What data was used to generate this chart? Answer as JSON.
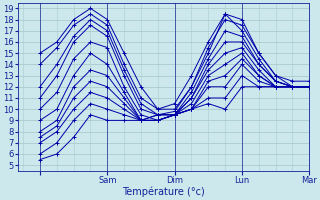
{
  "xlabel": "Température (°c)",
  "xlim": [
    -8,
    96
  ],
  "ylim": [
    4.5,
    19.5
  ],
  "yticks": [
    5,
    6,
    7,
    8,
    9,
    10,
    11,
    12,
    13,
    14,
    15,
    16,
    17,
    18,
    19
  ],
  "xtick_positions": [
    0,
    24,
    48,
    72,
    96
  ],
  "xtick_labels": [
    "",
    "Sam",
    "Dim",
    "Lun",
    "Mar"
  ],
  "bg_color": "#cce8ec",
  "grid_color": "#aacccc",
  "line_color": "#0000aa",
  "marker": "+",
  "markersize": 3,
  "linewidth": 0.7,
  "x_steps": [
    0,
    6,
    12,
    18,
    24,
    30,
    36,
    42,
    48,
    54,
    60,
    66,
    72,
    78,
    84,
    90,
    96
  ],
  "series": [
    [
      15,
      16,
      18,
      19,
      18,
      15,
      12,
      10,
      10.5,
      13,
      16,
      18.5,
      18,
      15,
      13,
      12.5,
      12.5
    ],
    [
      14,
      15.5,
      17.5,
      18.5,
      17.5,
      14,
      11,
      10,
      10,
      12,
      15.5,
      18,
      17.5,
      15,
      13,
      12,
      12
    ],
    [
      12,
      14,
      16.5,
      18,
      17,
      13.5,
      10.5,
      9.5,
      9.8,
      12,
      15,
      18.5,
      17,
      14.5,
      12.5,
      12,
      12
    ],
    [
      11,
      13,
      16,
      17.5,
      16.5,
      13,
      10,
      9.5,
      9.5,
      11.5,
      14.5,
      17,
      16.5,
      14,
      12.5,
      12,
      12
    ],
    [
      10,
      11.5,
      14.5,
      16,
      15.5,
      12,
      9.5,
      9.0,
      9.5,
      11,
      14,
      16,
      16,
      14,
      12.5,
      12,
      12
    ],
    [
      9,
      10,
      13,
      15,
      14,
      11.5,
      9,
      9,
      9.5,
      11,
      13.5,
      15,
      15.5,
      13.5,
      12,
      12,
      12
    ],
    [
      8,
      9,
      12,
      13.5,
      13,
      11,
      9,
      9,
      9.5,
      10.5,
      13,
      14,
      15,
      13,
      12,
      12,
      12
    ],
    [
      7.5,
      8.5,
      11,
      12.5,
      12,
      10.5,
      9,
      9,
      9.5,
      10,
      12.5,
      13,
      14.5,
      13,
      12,
      12,
      12
    ],
    [
      7,
      8,
      10,
      11.5,
      11,
      10,
      9,
      9,
      9.5,
      10,
      12,
      12,
      14,
      12.5,
      12,
      12,
      12
    ],
    [
      6,
      7,
      9,
      10.5,
      10,
      9.5,
      9,
      9.5,
      9.5,
      10,
      11,
      11,
      13,
      12,
      12,
      12,
      12
    ],
    [
      5.5,
      6,
      7.5,
      9.5,
      9,
      9,
      9,
      9.5,
      9.5,
      10,
      10.5,
      10,
      12,
      12,
      12,
      12,
      12
    ]
  ]
}
